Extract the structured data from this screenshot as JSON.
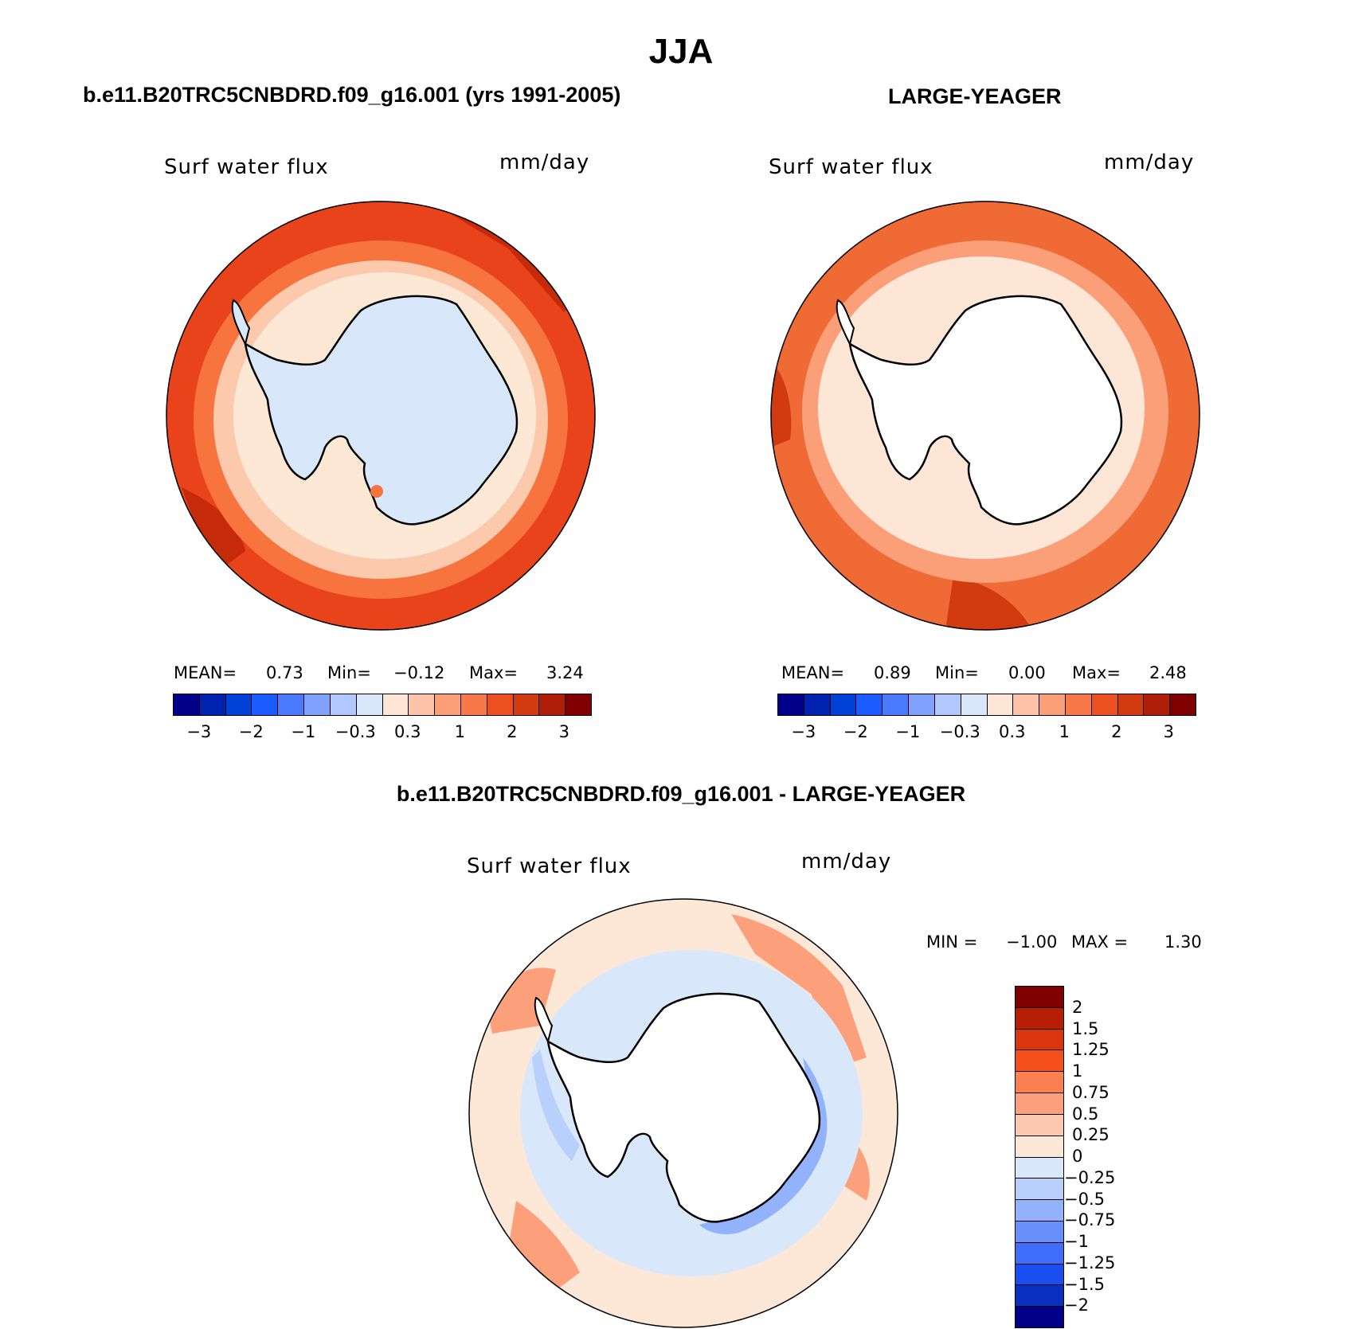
{
  "title": "JJA",
  "panels": {
    "left": {
      "header": "b.e11.B20TRC5CNBDRD.f09_g16.001 (yrs 1991-2005)",
      "variable": "Surf water flux",
      "units": "mm/day",
      "mean_label": "MEAN=",
      "mean_value": "0.73",
      "min_label": "Min=",
      "min_value": "−0.12",
      "max_label": "Max=",
      "max_value": "3.24"
    },
    "right": {
      "header": "LARGE-YEAGER",
      "variable": "Surf water flux",
      "units": "mm/day",
      "mean_label": "MEAN=",
      "mean_value": "0.89",
      "min_label": "Min=",
      "min_value": "0.00",
      "max_label": "Max=",
      "max_value": "2.48"
    },
    "diff": {
      "header": "b.e11.B20TRC5CNBDRD.f09_g16.001 - LARGE-YEAGER",
      "variable": "Surf water flux",
      "units": "mm/day",
      "min_label": "MIN =",
      "min_value": "−1.00",
      "max_label": "MAX =",
      "max_value": "1.30"
    }
  },
  "colorbar_abs": {
    "colors": [
      "#00008b",
      "#0022b0",
      "#0041d8",
      "#1a5cff",
      "#4a7bff",
      "#7fa2ff",
      "#b0c8ff",
      "#d8e8fa",
      "#fde6d6",
      "#fdc4aa",
      "#fb9f78",
      "#f8784a",
      "#ec5020",
      "#d23a10",
      "#ae1e08",
      "#800000"
    ],
    "labels": [
      "−3",
      "−2",
      "−1",
      "−0.3",
      "0.3",
      "1",
      "2",
      "3"
    ]
  },
  "colorbar_diff": {
    "colors": [
      "#800000",
      "#b51f05",
      "#d9360d",
      "#f5501c",
      "#fb7f50",
      "#fca07c",
      "#fdc8b0",
      "#fde8d8",
      "#d8e8fa",
      "#b8d0fb",
      "#92b2fc",
      "#6a90fc",
      "#3e6efa",
      "#1a4ef0",
      "#0a30c0",
      "#00008b"
    ],
    "labels": [
      "2",
      "1.5",
      "1.25",
      "1",
      "0.75",
      "0.5",
      "0.25",
      "0",
      "−0.25",
      "−0.5",
      "−0.75",
      "−1",
      "−1.25",
      "−1.5",
      "−2"
    ]
  },
  "map_colors": {
    "left_outer": "#e8431a",
    "left_mid": "#f7743f",
    "left_inner": "#fcc9ac",
    "left_shelf": "#fde8d6",
    "left_land": "#d8e8fa",
    "right_outer": "#f06a36",
    "right_mid": "#fb9f78",
    "right_inner": "#fde6d6",
    "right_land": "#ffffff",
    "diff_base": "#fde8d8",
    "diff_pos": "#fca07c",
    "diff_neg": "#d8e8fa",
    "diff_neg2": "#b8d0fb",
    "diff_land": "#ffffff"
  }
}
